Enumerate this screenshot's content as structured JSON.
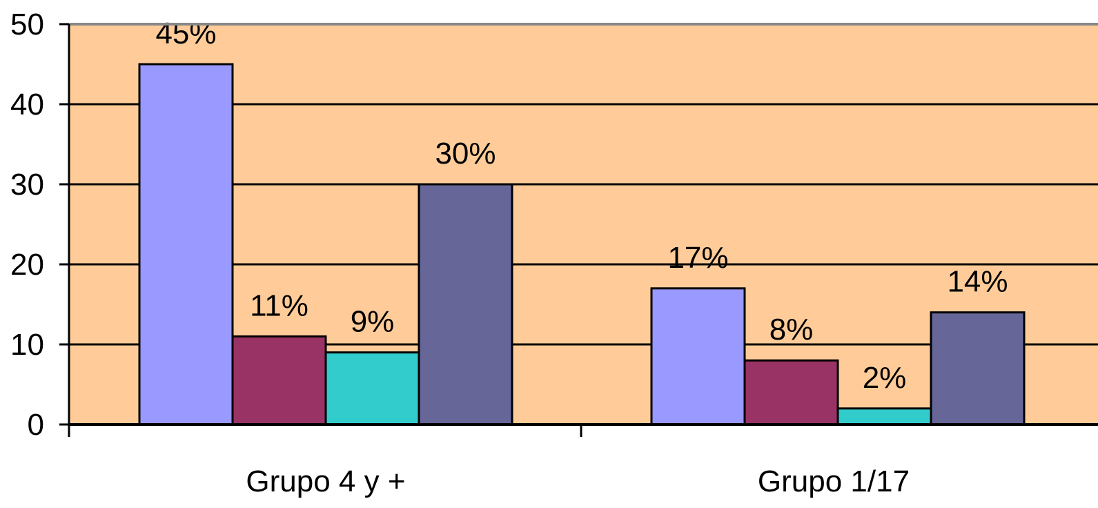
{
  "chart_data": {
    "type": "bar",
    "categories": [
      "Grupo 4 y +",
      "Grupo 1/17"
    ],
    "series": [
      {
        "values": [
          45,
          17
        ],
        "labels": [
          "45%",
          "17%"
        ],
        "color": "#9999FF"
      },
      {
        "values": [
          11,
          8
        ],
        "labels": [
          "11%",
          "8%"
        ],
        "color": "#993366"
      },
      {
        "values": [
          9,
          2
        ],
        "labels": [
          "9%",
          "2%"
        ],
        "color": "#33CCCC"
      },
      {
        "values": [
          30,
          14
        ],
        "labels": [
          "30%",
          "14%"
        ],
        "color": "#666699"
      }
    ],
    "title": "",
    "xlabel": "",
    "ylabel": "",
    "ylim": [
      0,
      50
    ],
    "yticks": [
      "0",
      "10",
      "20",
      "30",
      "40",
      "50"
    ],
    "grid": true,
    "plot_background": "#FFCC99"
  }
}
